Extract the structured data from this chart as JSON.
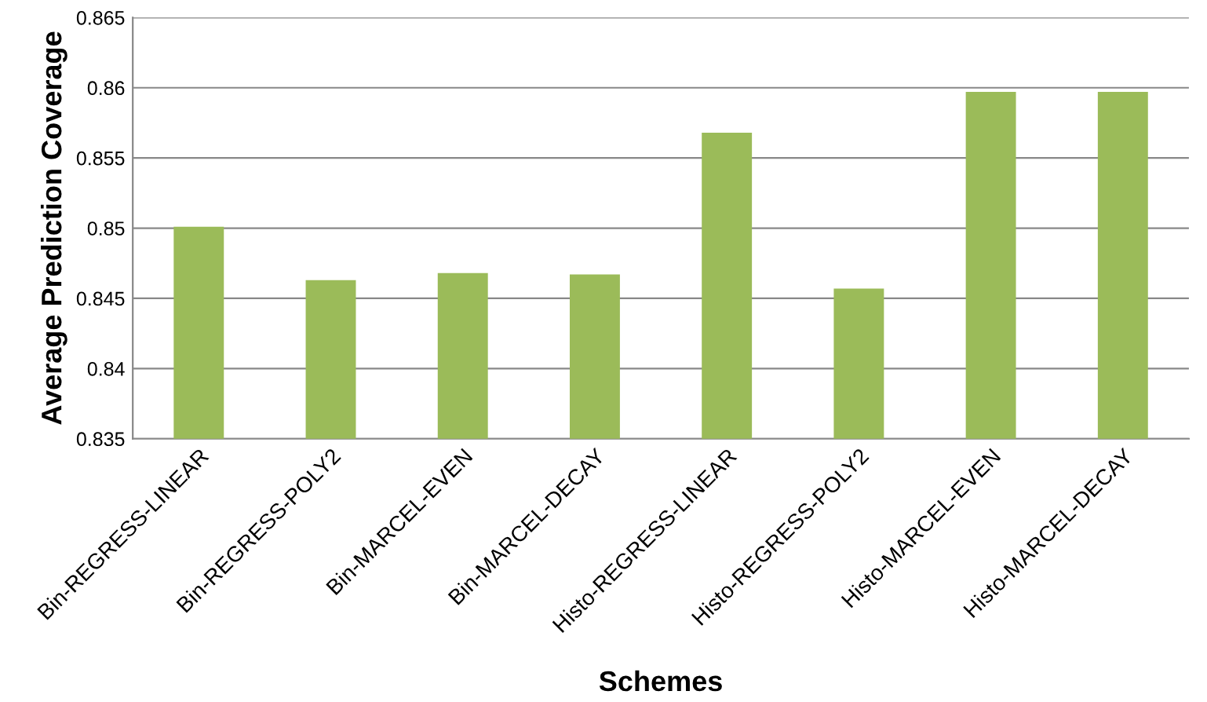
{
  "chart_data": {
    "type": "bar",
    "xlabel": "Schemes",
    "ylabel": "Average Prediction Coverage",
    "categories": [
      "Bin-REGRESS-LINEAR",
      "Bin-REGRESS-POLY2",
      "Bin-MARCEL-EVEN",
      "Bin-MARCEL-DECAY",
      "Histo-REGRESS-LINEAR",
      "Histo-REGRESS-POLY2",
      "Histo-MARCEL-EVEN",
      "Histo-MARCEL-DECAY"
    ],
    "values": [
      0.8501,
      0.8463,
      0.8468,
      0.8467,
      0.8568,
      0.8457,
      0.8597,
      0.8597
    ],
    "color": "#9bbb59",
    "ylim": [
      0.835,
      0.865
    ],
    "yticks": [
      0.835,
      0.84,
      0.845,
      0.85,
      0.855,
      0.86,
      0.865
    ],
    "grid": "y"
  }
}
